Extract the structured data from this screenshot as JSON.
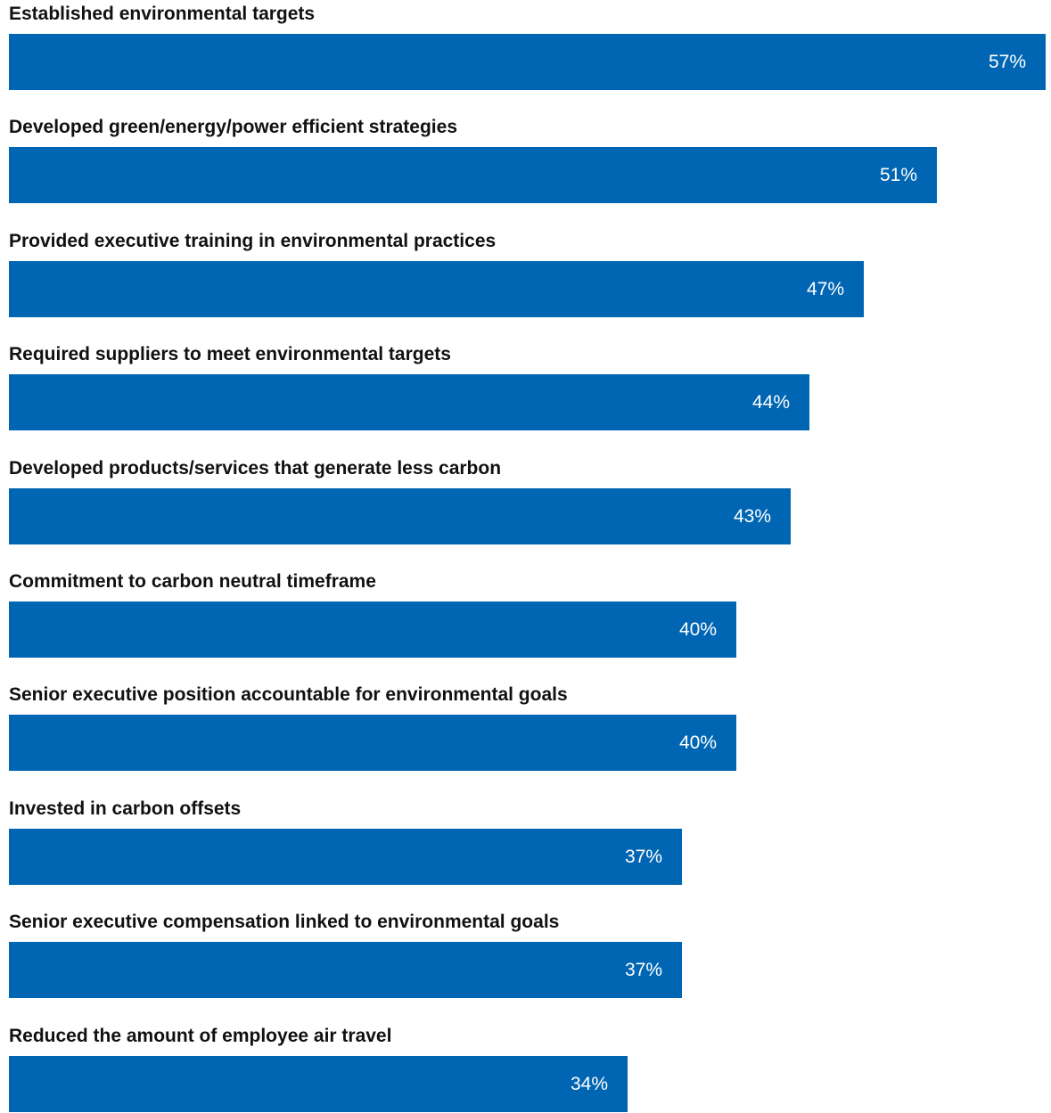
{
  "chart_data": {
    "type": "bar",
    "orientation": "horizontal",
    "title": "",
    "xlabel": "",
    "ylabel": "",
    "xlim": [
      0,
      57
    ],
    "grid": false,
    "legend": "none",
    "bar_color": "#0066b3",
    "value_label_color": "#ffffff",
    "value_suffix": "%",
    "categories": [
      "Established environmental targets",
      "Developed green/energy/power efficient strategies",
      "Provided executive training in environmental practices",
      "Required suppliers to meet environmental targets",
      "Developed products/services that generate less carbon",
      "Commitment to carbon neutral timeframe",
      "Senior executive position accountable for environmental goals",
      "Invested in carbon offsets",
      "Senior executive compensation linked to environmental goals",
      "Reduced the amount of employee air travel"
    ],
    "values": [
      57,
      51,
      47,
      44,
      43,
      40,
      40,
      37,
      37,
      34
    ],
    "value_labels": [
      "57%",
      "51%",
      "47%",
      "44%",
      "43%",
      "40%",
      "40%",
      "37%",
      "37%",
      "34%"
    ]
  }
}
